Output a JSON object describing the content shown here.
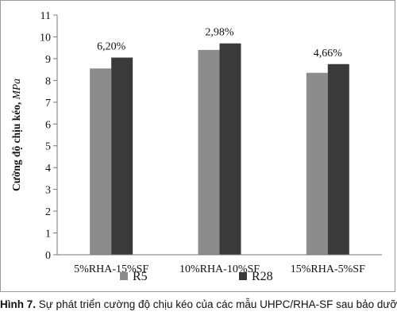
{
  "chart_data": {
    "type": "bar",
    "categories": [
      "5%RHA-15%SF",
      "10%RHA-10%SF",
      "15%RHA-5%SF"
    ],
    "series": [
      {
        "name": "R5",
        "color": "#8c8c8c",
        "values": [
          8.55,
          9.4,
          8.35
        ]
      },
      {
        "name": "R28",
        "color": "#3a3a3a",
        "values": [
          9.05,
          9.7,
          8.75
        ]
      }
    ],
    "data_labels": [
      "6,20%",
      "2,98%",
      "4,66%"
    ],
    "ylabel_main": "Cường độ chịu kéo, ",
    "ylabel_unit": "MPa",
    "ylim": [
      0,
      11
    ],
    "yticks": [
      0,
      1,
      2,
      3,
      4,
      5,
      6,
      7,
      8,
      9,
      10,
      11
    ],
    "grid": false,
    "legend_position": "bottom"
  },
  "caption": {
    "prefix": "Hình 7.",
    "text": " Sự phát triển cường độ chịu kéo của các mẫu UHPC/RHA-SF sau bảo dưỡng"
  }
}
